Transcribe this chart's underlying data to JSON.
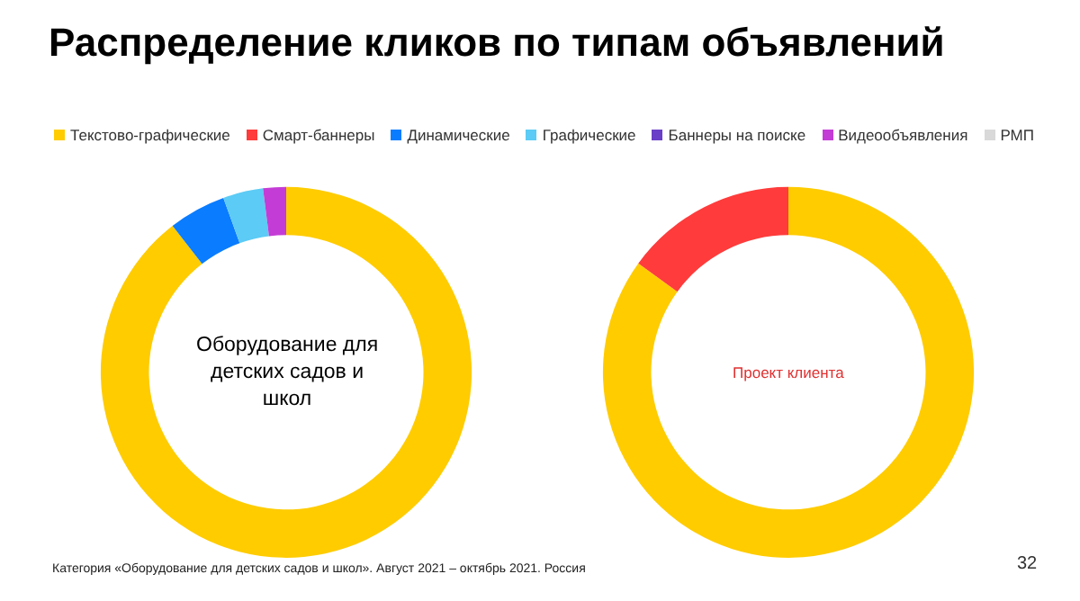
{
  "chart_data": {
    "type": "donut",
    "title": "Распределение кликов по типам объявлений",
    "legend": "top left",
    "categories": [
      "Текстово-графические",
      "Смарт-баннеры",
      "Динамические",
      "Графические",
      "Баннеры на поиске",
      "Видеообъявления",
      "РМП"
    ],
    "colors": [
      "#ffcc00",
      "#ff3b3b",
      "#0a7cff",
      "#5ccbf5",
      "#6a3fc8",
      "#c43cd6",
      "#d9d9d9"
    ],
    "series": [
      {
        "name": "Оборудование для детских садов и школ",
        "color": "#000000",
        "values": [
          89.5,
          0,
          5,
          3.5,
          0,
          2,
          0
        ]
      },
      {
        "name": "Проект клиента",
        "color": "#e03030",
        "values": [
          85,
          15,
          0,
          0,
          0,
          0,
          0
        ]
      }
    ],
    "annotations": [
      "Категория «Оборудование для детских садов и школ». Август 2021 – октябрь 2021. Россия",
      "32"
    ]
  }
}
